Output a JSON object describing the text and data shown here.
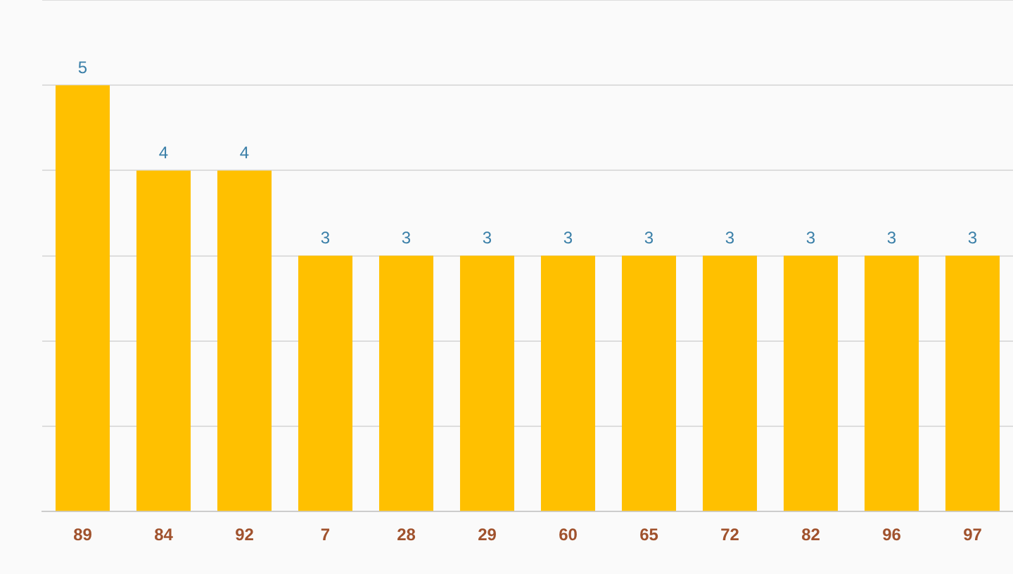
{
  "chart_data": {
    "type": "bar",
    "categories": [
      "89",
      "84",
      "92",
      "7",
      "28",
      "29",
      "60",
      "65",
      "72",
      "82",
      "96",
      "97"
    ],
    "values": [
      5,
      4,
      4,
      3,
      3,
      3,
      3,
      3,
      3,
      3,
      3,
      3
    ],
    "color": "#ffc000",
    "ylim": [
      0,
      6
    ],
    "yticks": [
      {
        "value": 0,
        "label": null
      },
      {
        "value": 1,
        "label": null
      },
      {
        "value": 2,
        "label": null
      },
      {
        "value": 3,
        "label": null
      },
      {
        "value": 4,
        "label": null
      },
      {
        "value": 5,
        "label": null
      },
      {
        "value": 6,
        "label": null
      }
    ],
    "grid": "y",
    "tick_labels": "x",
    "legend": false,
    "data_labels": true
  }
}
